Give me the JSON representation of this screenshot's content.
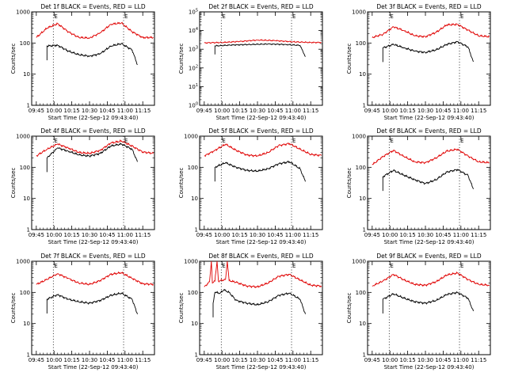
{
  "figure": {
    "xlabel": "Start Time (22-Sep-12 09:43:40)",
    "ylabel": "Counts/sec",
    "xticks": [
      "09:45",
      "10:00",
      "10:15",
      "10:30",
      "10:45",
      "11:00",
      "11:15"
    ],
    "marker_label": "E",
    "colors": {
      "events": "#000000",
      "lld": "#e00000",
      "axis": "#000000"
    }
  },
  "chart_data": [
    {
      "type": "line",
      "title": "Det 1f BLACK = Events, RED = LLD",
      "yscale": "log",
      "ylim": [
        1,
        1000
      ],
      "yticks": [
        "1",
        "10",
        "100",
        "1000"
      ],
      "xlim": [
        -1.3,
        33.3
      ],
      "series": [
        {
          "name": "LLD",
          "x": [
            0,
            3,
            6,
            9,
            12,
            15,
            18,
            21,
            24,
            27,
            30,
            33
          ],
          "values": [
            150,
            300,
            420,
            230,
            150,
            145,
            210,
            400,
            440,
            230,
            150,
            150
          ]
        },
        {
          "name": "Events",
          "x": [
            3,
            6,
            9,
            12,
            15,
            18,
            21,
            24,
            27,
            28.5
          ],
          "values": [
            80,
            85,
            55,
            42,
            38,
            45,
            80,
            95,
            60,
            20
          ]
        }
      ],
      "markers_x": [
        4.8,
        24.6
      ]
    },
    {
      "type": "line",
      "title": "Det 2f BLACK = Events, RED = LLD",
      "yscale": "log",
      "ylim": [
        1,
        100000
      ],
      "yticks": [
        "10^0",
        "10^1",
        "10^2",
        "10^3",
        "10^4",
        "10^5"
      ],
      "xlim": [
        -1.3,
        33.3
      ],
      "series": [
        {
          "name": "LLD",
          "x": [
            0,
            5,
            10,
            15,
            20,
            25,
            30,
            33
          ],
          "values": [
            2200,
            2300,
            2600,
            3100,
            2900,
            2500,
            2300,
            2300
          ]
        },
        {
          "name": "Events",
          "x": [
            3,
            8,
            13,
            18,
            23,
            27,
            28.5
          ],
          "values": [
            1500,
            1700,
            1800,
            1900,
            1800,
            1600,
            400
          ]
        }
      ],
      "markers_x": [
        4.8,
        24.6
      ]
    },
    {
      "type": "line",
      "title": "Det 3f BLACK = Events, RED = LLD",
      "yscale": "log",
      "ylim": [
        1,
        1000
      ],
      "yticks": [
        "1",
        "10",
        "100",
        "1000"
      ],
      "xlim": [
        -1.3,
        33.3
      ],
      "series": [
        {
          "name": "LLD",
          "x": [
            0,
            3,
            6,
            9,
            12,
            15,
            18,
            21,
            24,
            27,
            30,
            33
          ],
          "values": [
            150,
            190,
            330,
            250,
            170,
            160,
            220,
            380,
            400,
            260,
            170,
            160
          ]
        },
        {
          "name": "Events",
          "x": [
            3,
            6,
            9,
            12,
            15,
            18,
            21,
            24,
            27,
            28.5
          ],
          "values": [
            70,
            90,
            70,
            55,
            50,
            60,
            90,
            110,
            75,
            25
          ]
        }
      ],
      "markers_x": [
        4.8,
        24.6
      ]
    },
    {
      "type": "line",
      "title": "Det 4f BLACK = Events, RED = LLD",
      "yscale": "log",
      "ylim": [
        1,
        1000
      ],
      "yticks": [
        "1",
        "10",
        "100",
        "1000"
      ],
      "xlim": [
        -1.3,
        33.3
      ],
      "series": [
        {
          "name": "LLD",
          "x": [
            0,
            3,
            6,
            9,
            12,
            15,
            18,
            21,
            24,
            27,
            30,
            33
          ],
          "values": [
            230,
            380,
            560,
            420,
            300,
            280,
            350,
            600,
            700,
            480,
            310,
            280
          ]
        },
        {
          "name": "Events",
          "x": [
            3,
            6,
            9,
            12,
            15,
            18,
            21,
            24,
            27,
            28.5
          ],
          "values": [
            200,
            420,
            330,
            250,
            230,
            280,
            480,
            560,
            380,
            150
          ]
        }
      ],
      "markers_x": [
        4.8,
        24.6
      ]
    },
    {
      "type": "line",
      "title": "Det 5f BLACK = Events, RED = LLD",
      "yscale": "log",
      "ylim": [
        1,
        1000
      ],
      "yticks": [
        "1",
        "10",
        "100",
        "1000"
      ],
      "xlim": [
        -1.3,
        33.3
      ],
      "series": [
        {
          "name": "LLD",
          "x": [
            0,
            3,
            6,
            9,
            12,
            15,
            18,
            21,
            24,
            27,
            30,
            33
          ],
          "values": [
            230,
            350,
            550,
            350,
            250,
            230,
            300,
            500,
            580,
            380,
            260,
            240
          ]
        },
        {
          "name": "Events",
          "x": [
            3,
            6,
            9,
            12,
            15,
            18,
            21,
            24,
            27,
            28.5
          ],
          "values": [
            100,
            140,
            100,
            80,
            75,
            90,
            130,
            150,
            90,
            35
          ]
        }
      ],
      "markers_x": [
        4.8,
        24.6
      ]
    },
    {
      "type": "line",
      "title": "Det 6f BLACK = Events, RED = LLD",
      "yscale": "log",
      "ylim": [
        1,
        1000
      ],
      "yticks": [
        "1",
        "10",
        "100",
        "1000"
      ],
      "xlim": [
        -1.3,
        33.3
      ],
      "series": [
        {
          "name": "LLD",
          "x": [
            0,
            3,
            6,
            9,
            12,
            15,
            18,
            21,
            24,
            27,
            30,
            33
          ],
          "values": [
            120,
            220,
            350,
            220,
            150,
            140,
            200,
            330,
            380,
            230,
            150,
            140
          ]
        },
        {
          "name": "Events",
          "x": [
            3,
            6,
            9,
            12,
            15,
            18,
            21,
            24,
            27,
            28.5
          ],
          "values": [
            50,
            80,
            55,
            40,
            30,
            40,
            70,
            85,
            55,
            20
          ]
        }
      ],
      "markers_x": [
        4.8,
        24.6
      ]
    },
    {
      "type": "line",
      "title": "Det 7f BLACK = Events, RED = LLD",
      "yscale": "log",
      "ylim": [
        1,
        1000
      ],
      "yticks": [
        "1",
        "10",
        "100",
        "1000"
      ],
      "xlim": [
        -1.3,
        33.3
      ],
      "series": [
        {
          "name": "LLD",
          "x": [
            0,
            3,
            6,
            9,
            12,
            15,
            18,
            21,
            24,
            27,
            30,
            33
          ],
          "values": [
            180,
            260,
            400,
            280,
            200,
            180,
            240,
            380,
            430,
            280,
            190,
            180
          ]
        },
        {
          "name": "Events",
          "x": [
            3,
            6,
            9,
            12,
            15,
            18,
            21,
            24,
            27,
            28.5
          ],
          "values": [
            60,
            85,
            60,
            50,
            45,
            55,
            80,
            95,
            60,
            20
          ]
        }
      ],
      "markers_x": [
        4.8,
        24.6
      ]
    },
    {
      "type": "line",
      "title": "Det 8f BLACK = Events, RED = LLD",
      "yscale": "log",
      "ylim": [
        1,
        1000
      ],
      "yticks": [
        "1",
        "10",
        "100",
        "1000"
      ],
      "xlim": [
        -1.3,
        33.3
      ],
      "series": [
        {
          "name": "LLD",
          "x": [
            0,
            1.5,
            2,
            2.3,
            3,
            3.6,
            4,
            6,
            6.5,
            7,
            9,
            12,
            15,
            18,
            21,
            24,
            27,
            30,
            33
          ],
          "values": [
            150,
            220,
            1000,
            200,
            230,
            1000,
            230,
            260,
            1000,
            240,
            210,
            160,
            150,
            200,
            330,
            380,
            250,
            170,
            160
          ]
        },
        {
          "name": "Events",
          "x": [
            2.5,
            3,
            4.5,
            5.5,
            7,
            9,
            12,
            15,
            18,
            21,
            24,
            27,
            28.5
          ],
          "values": [
            45,
            100,
            95,
            120,
            100,
            55,
            45,
            40,
            50,
            80,
            95,
            60,
            20
          ]
        }
      ],
      "markers_x": [
        4.8,
        24.6
      ]
    },
    {
      "type": "line",
      "title": "Det 9f BLACK = Events, RED = LLD",
      "yscale": "log",
      "ylim": [
        1,
        1000
      ],
      "yticks": [
        "1",
        "10",
        "100",
        "1000"
      ],
      "xlim": [
        -1.3,
        33.3
      ],
      "series": [
        {
          "name": "LLD",
          "x": [
            0,
            3,
            6,
            9,
            12,
            15,
            18,
            21,
            24,
            27,
            30,
            33
          ],
          "values": [
            160,
            230,
            380,
            250,
            180,
            170,
            220,
            360,
            420,
            260,
            180,
            170
          ]
        },
        {
          "name": "Events",
          "x": [
            3,
            6,
            9,
            12,
            15,
            18,
            21,
            24,
            27,
            28.5
          ],
          "values": [
            60,
            90,
            65,
            50,
            45,
            55,
            85,
            100,
            65,
            25
          ]
        }
      ],
      "markers_x": [
        4.8,
        24.6
      ]
    }
  ]
}
